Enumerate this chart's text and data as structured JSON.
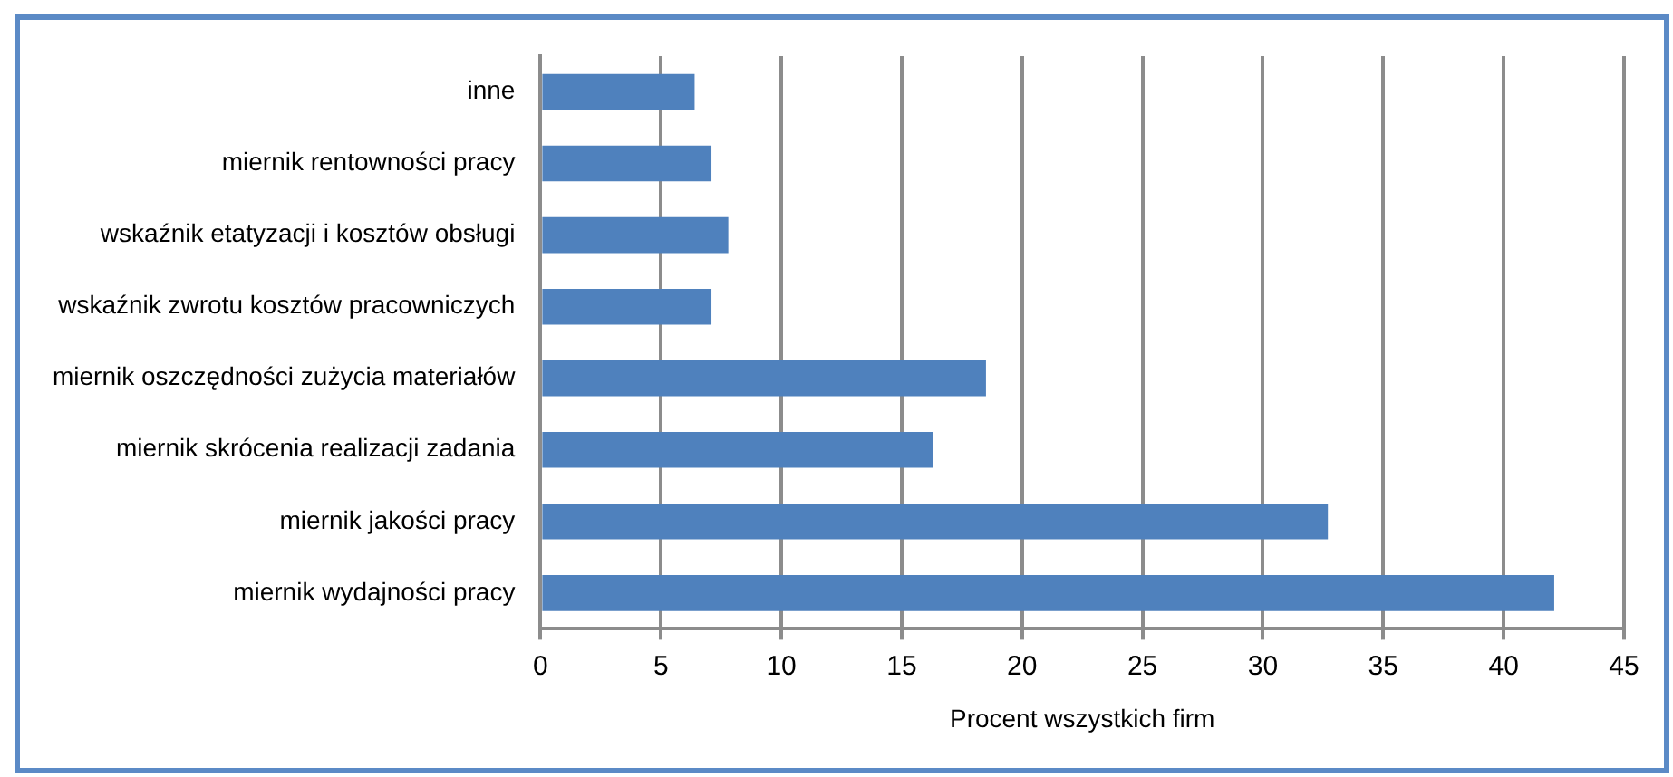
{
  "chart_data": {
    "type": "bar",
    "orientation": "horizontal",
    "xlabel": "Procent wszystkich firm",
    "categories": [
      "inne",
      "miernik rentowności pracy",
      "wskaźnik etatyzacji i kosztów obsługi",
      "wskaźnik zwrotu kosztów pracowniczych",
      "miernik oszczędności zużycia materiałów",
      "miernik skrócenia realizacji zadania",
      "miernik jakości pracy",
      "miernik wydajności pracy"
    ],
    "values": [
      6.4,
      7.1,
      7.8,
      7.1,
      18.5,
      16.3,
      32.7,
      42.1
    ],
    "color": "#4f81bd",
    "xlim": [
      0,
      45
    ],
    "xticks": [
      0,
      5,
      10,
      15,
      20,
      25,
      30,
      35,
      40,
      45
    ],
    "grid": "x",
    "legend": false
  }
}
